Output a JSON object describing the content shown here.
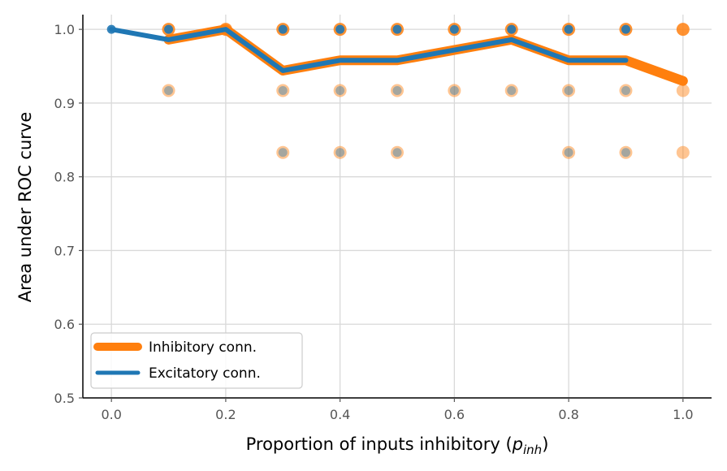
{
  "chart_data": {
    "type": "line",
    "xlabel_main": "Proportion of inputs inhibitory (",
    "xlabel_sym": "p",
    "xlabel_sub": "inh",
    "xlabel_close": ")",
    "ylabel": "Area under ROC curve",
    "xlim": [
      -0.05,
      1.05
    ],
    "ylim": [
      0.5,
      1.02
    ],
    "xticks": [
      "0.0",
      "0.2",
      "0.4",
      "0.6",
      "0.8",
      "1.0"
    ],
    "yticks": [
      "0.5",
      "0.6",
      "0.7",
      "0.8",
      "0.9",
      "1.0"
    ],
    "grid": true,
    "legend_position": "lower-left",
    "series": [
      {
        "name": "Inhibitory conn.",
        "color": "#ff7f0e",
        "x": [
          0.1,
          0.2,
          0.3,
          0.4,
          0.5,
          0.6,
          0.7,
          0.8,
          0.9,
          1.0
        ],
        "y": [
          0.986,
          1.0,
          0.944,
          0.958,
          0.958,
          0.972,
          0.986,
          0.958,
          0.958,
          0.93
        ],
        "points": [
          [
            0.1,
            1.0
          ],
          [
            0.1,
            0.917
          ],
          [
            0.2,
            1.0
          ],
          [
            0.3,
            1.0
          ],
          [
            0.3,
            0.917
          ],
          [
            0.3,
            0.833
          ],
          [
            0.4,
            1.0
          ],
          [
            0.4,
            0.917
          ],
          [
            0.4,
            0.833
          ],
          [
            0.5,
            1.0
          ],
          [
            0.5,
            0.917
          ],
          [
            0.5,
            0.833
          ],
          [
            0.6,
            1.0
          ],
          [
            0.6,
            0.917
          ],
          [
            0.7,
            1.0
          ],
          [
            0.7,
            0.917
          ],
          [
            0.8,
            1.0
          ],
          [
            0.8,
            0.917
          ],
          [
            0.8,
            0.833
          ],
          [
            0.9,
            1.0
          ],
          [
            0.9,
            0.917
          ],
          [
            0.9,
            0.833
          ],
          [
            1.0,
            1.0
          ],
          [
            1.0,
            0.917
          ],
          [
            1.0,
            0.833
          ]
        ]
      },
      {
        "name": "Excitatory conn.",
        "color": "#1f77b4",
        "x": [
          0.0,
          0.1,
          0.2,
          0.3,
          0.4,
          0.5,
          0.6,
          0.7,
          0.8,
          0.9
        ],
        "y": [
          1.0,
          0.986,
          1.0,
          0.944,
          0.958,
          0.958,
          0.972,
          0.986,
          0.958,
          0.958
        ],
        "points": [
          [
            0.0,
            1.0
          ],
          [
            0.1,
            1.0
          ],
          [
            0.1,
            0.917
          ],
          [
            0.2,
            1.0
          ],
          [
            0.3,
            1.0
          ],
          [
            0.3,
            0.917
          ],
          [
            0.3,
            0.833
          ],
          [
            0.4,
            1.0
          ],
          [
            0.4,
            0.917
          ],
          [
            0.4,
            0.833
          ],
          [
            0.5,
            1.0
          ],
          [
            0.5,
            0.917
          ],
          [
            0.5,
            0.833
          ],
          [
            0.6,
            1.0
          ],
          [
            0.6,
            0.917
          ],
          [
            0.7,
            1.0
          ],
          [
            0.7,
            0.917
          ],
          [
            0.8,
            1.0
          ],
          [
            0.8,
            0.917
          ],
          [
            0.8,
            0.833
          ],
          [
            0.9,
            1.0
          ],
          [
            0.9,
            0.917
          ],
          [
            0.9,
            0.833
          ]
        ]
      }
    ]
  }
}
